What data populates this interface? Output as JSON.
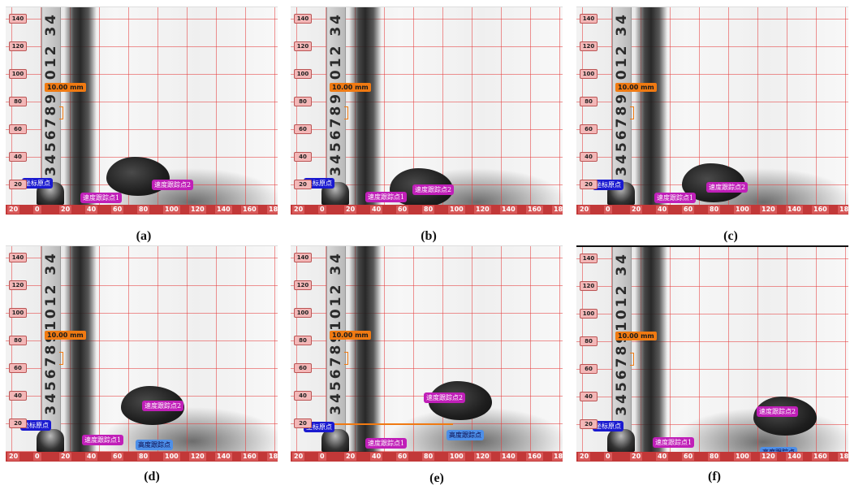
{
  "panels": [
    {
      "id": "a",
      "caption": "(a)"
    },
    {
      "id": "b",
      "caption": "(b)"
    },
    {
      "id": "c",
      "caption": "(c)"
    },
    {
      "id": "d",
      "caption": "(d)"
    },
    {
      "id": "e",
      "caption": "(e)"
    },
    {
      "id": "f",
      "caption": "(f)"
    }
  ],
  "overlay": {
    "scale_label": "10.00 mm",
    "coord_tag": "坐标原点",
    "speed_tag_1": "速度跟踪点1",
    "speed_tag_2": "速度跟踪点2",
    "height_tag": "高度跟踪点",
    "ruler_digits": "34567891012 34",
    "y_ticks": [
      "140",
      "120",
      "100",
      "80",
      "60",
      "40",
      "20"
    ],
    "x_ticks": [
      "20",
      "0",
      "20",
      "40",
      "60",
      "80",
      "100",
      "120",
      "140",
      "160",
      "18"
    ]
  },
  "colors": {
    "grid_line": "#e63c3c",
    "scale_label": "#f07a12",
    "coord_tag": "#1a1ad0",
    "speed_tag": "#c01fb8",
    "height_tag": "#4d8fe8"
  }
}
